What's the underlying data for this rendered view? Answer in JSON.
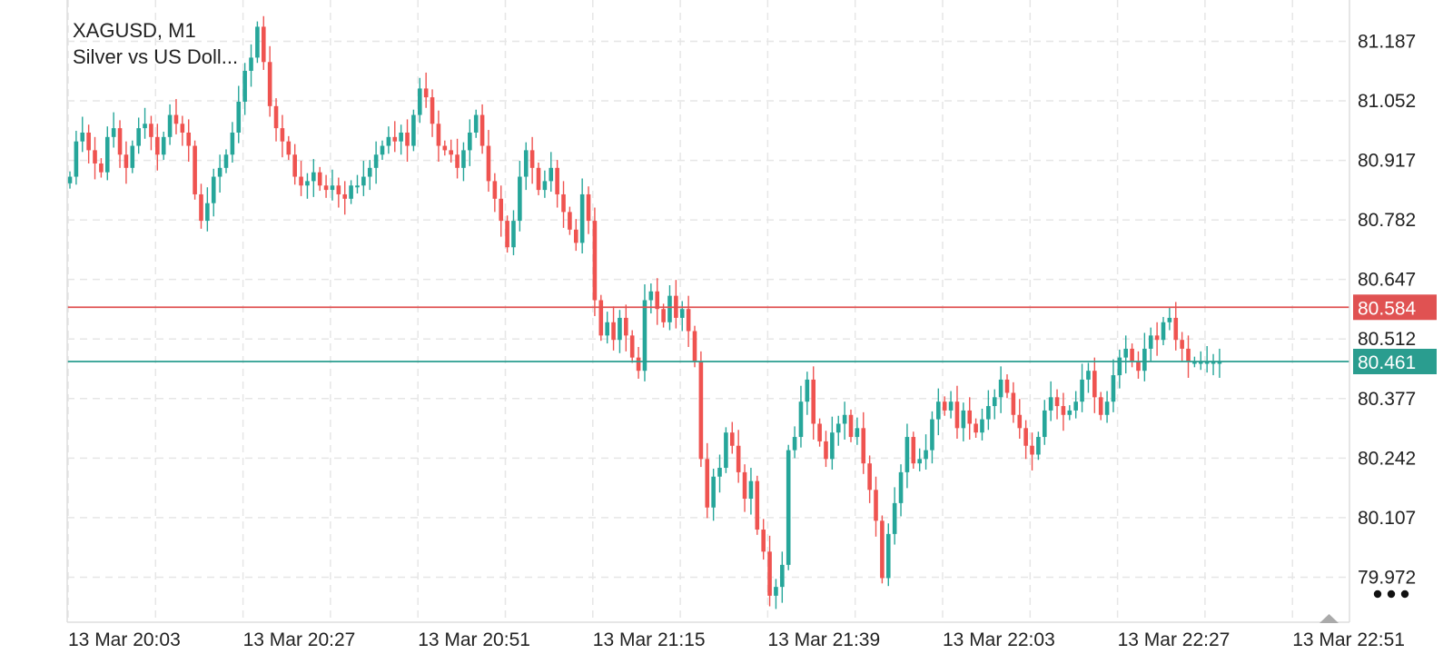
{
  "header": {
    "symbol": "XAGUSD, M1",
    "description": "Silver vs US Doll..."
  },
  "colors": {
    "bullish": "#26a69a",
    "bearish": "#ef5350",
    "grid": "#e6e6e6",
    "ask_line": "#e05252",
    "bid_line": "#2a9d8f",
    "axis_text": "#222222"
  },
  "more_menu": {
    "icon": "more-dots-icon"
  },
  "scroll_control": {
    "icon": "scroll-to-end-triangle-icon"
  },
  "chart_data": {
    "type": "candlestick",
    "symbol": "XAGUSD",
    "timeframe": "M1",
    "ylim": [
      79.87,
      81.26
    ],
    "y_ticks": [
      "81.187",
      "81.052",
      "80.917",
      "80.782",
      "80.647",
      "80.512",
      "80.377",
      "80.242",
      "80.107",
      "79.972"
    ],
    "x_ticks": [
      "13 Mar 20:03",
      "13 Mar 20:27",
      "13 Mar 20:51",
      "13 Mar 21:15",
      "13 Mar 21:39",
      "13 Mar 22:03",
      "13 Mar 22:27",
      "13 Mar 22:51"
    ],
    "ask_price": "80.584",
    "bid_price": "80.461",
    "grid": true,
    "candle_close_path": [
      80.88,
      80.96,
      80.98,
      80.94,
      80.91,
      80.89,
      80.97,
      80.99,
      80.93,
      80.9,
      80.95,
      80.99,
      81.0,
      80.97,
      80.93,
      80.97,
      81.02,
      81.0,
      80.98,
      80.95,
      80.84,
      80.78,
      80.82,
      80.88,
      80.9,
      80.93,
      80.98,
      81.05,
      81.12,
      81.15,
      81.22,
      81.14,
      81.04,
      80.99,
      80.96,
      80.93,
      80.88,
      80.86,
      80.87,
      80.89,
      80.86,
      80.85,
      80.86,
      80.84,
      80.83,
      80.86,
      80.86,
      80.88,
      80.9,
      80.93,
      80.95,
      80.97,
      80.96,
      80.98,
      80.95,
      81.02,
      81.08,
      81.06,
      81.0,
      80.95,
      80.94,
      80.93,
      80.9,
      80.94,
      80.98,
      81.02,
      80.95,
      80.87,
      80.83,
      80.78,
      80.72,
      80.78,
      80.88,
      80.94,
      80.9,
      80.85,
      80.87,
      80.9,
      80.84,
      80.8,
      80.76,
      80.73,
      80.84,
      80.78,
      80.6,
      80.52,
      80.55,
      80.51,
      80.56,
      80.52,
      80.47,
      80.44,
      80.6,
      80.62,
      80.58,
      80.55,
      80.61,
      80.56,
      80.58,
      80.53,
      80.46,
      80.24,
      80.13,
      80.2,
      80.22,
      80.3,
      80.27,
      80.21,
      80.15,
      80.19,
      80.08,
      80.03,
      79.93,
      79.95,
      80.0,
      80.26,
      80.29,
      80.37,
      80.42,
      80.32,
      80.28,
      80.24,
      80.3,
      80.32,
      80.34,
      80.29,
      80.31,
      80.23,
      80.17,
      80.1,
      79.97,
      80.07,
      80.14,
      80.21,
      80.29,
      80.23,
      80.24,
      80.26,
      80.33,
      80.37,
      80.35,
      80.37,
      80.31,
      80.35,
      80.32,
      80.3,
      80.33,
      80.36,
      80.38,
      80.42,
      80.39,
      80.34,
      80.31,
      80.27,
      80.25,
      80.29,
      80.35,
      80.38,
      80.36,
      80.34,
      80.35,
      80.37,
      80.42,
      80.44,
      80.38,
      80.34,
      80.37,
      80.43,
      80.47,
      80.49,
      80.46,
      80.44,
      80.49,
      80.52,
      80.51,
      80.55,
      80.56,
      80.51,
      80.49,
      80.46,
      80.46,
      80.46,
      80.46,
      80.46,
      80.46
    ]
  }
}
